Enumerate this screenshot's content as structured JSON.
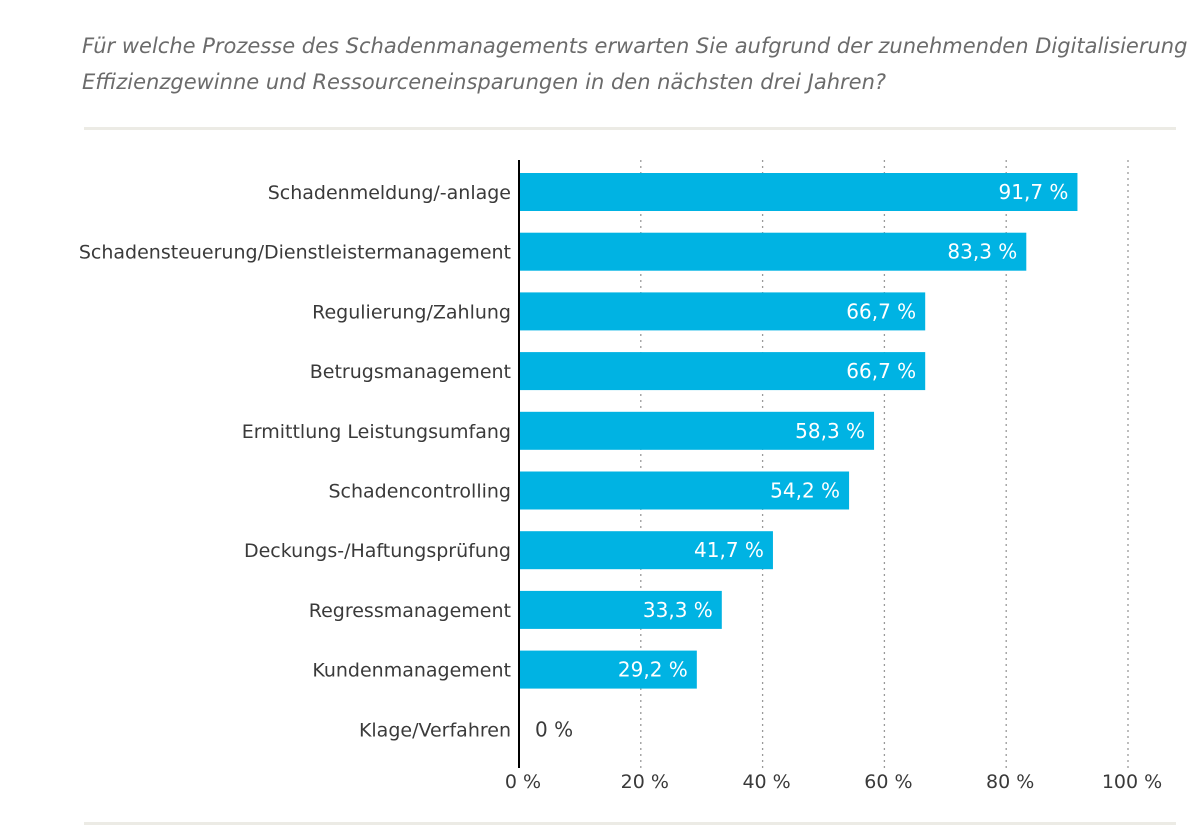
{
  "title_lines": [
    "Für welche Prozesse des Schadenmanagements erwarten Sie aufgrund der zunehmenden Digitalisierung",
    "Effizienzgewinne und Ressourceneinsparungen in den nächsten drei Jahren?"
  ],
  "colors": {
    "bar": "#00b3e3",
    "axis": "#000000",
    "grid": "#9a9a9a",
    "divider": "#ecebe5"
  },
  "chart_data": {
    "type": "bar",
    "orientation": "horizontal",
    "title": "Für welche Prozesse des Schadenmanagements erwarten Sie aufgrund der zunehmenden Digitalisierung Effizienzgewinne und Ressourceneinsparungen in den nächsten drei Jahren?",
    "categories": [
      "Schadenmeldung/-anlage",
      "Schadensteuerung/Dienstleistermanagement",
      "Regulierung/Zahlung",
      "Betrugsmanagement",
      "Ermittlung Leistungsumfang",
      "Schadencontrolling",
      "Deckungs-/Haftungsprüfung",
      "Regressmanagement",
      "Kundenmanagement",
      "Klage/Verfahren"
    ],
    "values": [
      91.7,
      83.3,
      66.7,
      66.7,
      58.3,
      54.2,
      41.7,
      33.3,
      29.2,
      0
    ],
    "value_labels": [
      "91,7 %",
      "83,3 %",
      "66,7 %",
      "66,7 %",
      "58,3 %",
      "54,2 %",
      "41,7 %",
      "33,3 %",
      "29,2 %",
      "0 %"
    ],
    "xlim": [
      0,
      100
    ],
    "xticks": [
      0,
      20,
      40,
      60,
      80,
      100
    ],
    "xtick_labels": [
      "0 %",
      "20 %",
      "40 %",
      "60 %",
      "80 %",
      "100 %"
    ],
    "grid": "vertical dotted",
    "xlabel": "",
    "ylabel": ""
  }
}
